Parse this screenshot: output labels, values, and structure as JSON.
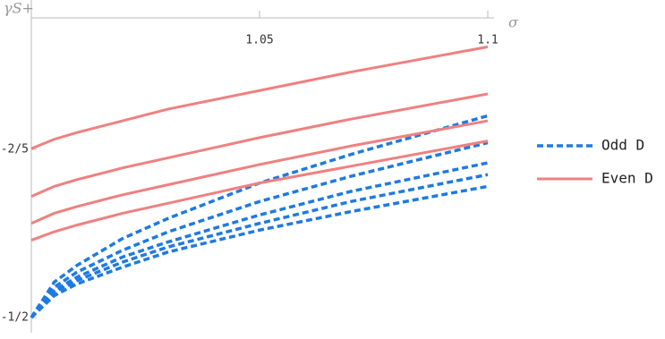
{
  "chart_data": {
    "type": "line",
    "xlabel": "σ",
    "ylabel": "γS+",
    "x": [
      1.0,
      1.005,
      1.01,
      1.02,
      1.03,
      1.05,
      1.07,
      1.1
    ],
    "xlim": [
      1.0,
      1.1
    ],
    "xticks": [
      1.05,
      1.1
    ],
    "ylim": [
      -0.5,
      -0.322
    ],
    "yticks": [
      {
        "value": -0.4,
        "label": "-2/5"
      },
      {
        "value": -0.5,
        "label": "-1/2"
      }
    ],
    "series": [
      {
        "name": "Odd D",
        "color": "#1f7ae0",
        "dashed": true,
        "values": [
          [
            -0.5,
            -0.479,
            -0.469,
            -0.453,
            -0.441,
            -0.42,
            -0.403,
            -0.38
          ],
          [
            -0.5,
            -0.482,
            -0.473,
            -0.46,
            -0.449,
            -0.431,
            -0.416,
            -0.396
          ],
          [
            -0.5,
            -0.484,
            -0.476,
            -0.464,
            -0.455,
            -0.439,
            -0.425,
            -0.408
          ],
          [
            -0.5,
            -0.485,
            -0.478,
            -0.467,
            -0.458,
            -0.444,
            -0.431,
            -0.415
          ],
          [
            -0.5,
            -0.487,
            -0.48,
            -0.47,
            -0.461,
            -0.448,
            -0.437,
            -0.422
          ]
        ]
      },
      {
        "name": "Even D",
        "color": "#f08080",
        "dashed": false,
        "values": [
          [
            -0.3995,
            -0.394,
            -0.39,
            -0.383,
            -0.376,
            -0.365,
            -0.354,
            -0.339
          ],
          [
            -0.428,
            -0.422,
            -0.418,
            -0.411,
            -0.405,
            -0.393,
            -0.382,
            -0.367
          ],
          [
            -0.444,
            -0.438,
            -0.434,
            -0.427,
            -0.421,
            -0.409,
            -0.398,
            -0.383
          ],
          [
            -0.454,
            -0.449,
            -0.445,
            -0.438,
            -0.432,
            -0.42,
            -0.41,
            -0.395
          ]
        ]
      }
    ]
  }
}
